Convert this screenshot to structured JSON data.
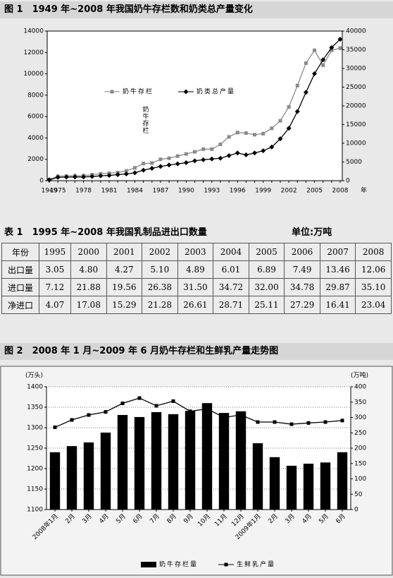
{
  "figure1_caption": "图 1　1949 年~2008 年我国奶牛存栏数和奶类总产量变化",
  "chart_data": [
    {
      "type": "line",
      "annotation": "奶牛存栏",
      "x_label": "年",
      "categories": [
        "1949",
        "1975",
        null,
        null,
        "1978",
        null,
        null,
        "1981",
        null,
        null,
        "1984",
        null,
        null,
        "1987",
        null,
        null,
        "1990",
        null,
        null,
        "1993",
        null,
        null,
        "1996",
        null,
        null,
        "1999",
        null,
        null,
        "2002",
        null,
        null,
        "2005",
        null,
        null,
        "2008"
      ],
      "series": [
        {
          "name": "奶牛存栏",
          "color": "#8a8a8a",
          "marker": "square",
          "values": [
            120,
            420,
            440,
            470,
            480,
            560,
            640,
            700,
            760,
            920,
            1200,
            1600,
            1650,
            2000,
            2100,
            2300,
            2500,
            2700,
            2950,
            2950,
            3400,
            4100,
            4500,
            4450,
            4300,
            4400,
            4900,
            5600,
            6900,
            8900,
            11000,
            12200,
            10800,
            12200,
            12400
          ]
        },
        {
          "name": "奶类总产量",
          "color": "#000000",
          "marker": "diamond",
          "axis": "y2",
          "values": [
            200,
            900,
            950,
            1000,
            1000,
            1100,
            1300,
            1400,
            1600,
            1800,
            2100,
            2800,
            3300,
            3800,
            4200,
            4500,
            4800,
            5300,
            5600,
            5800,
            6000,
            6700,
            7400,
            6900,
            7400,
            8000,
            9000,
            11200,
            14000,
            18500,
            23600,
            28600,
            32300,
            35600,
            37800
          ]
        }
      ],
      "ylim": [
        0,
        14000
      ],
      "yticks": [
        0,
        2000,
        4000,
        6000,
        8000,
        10000,
        12000,
        14000
      ],
      "y2lim": [
        0,
        40000
      ],
      "y2ticks": [
        0,
        5000,
        10000,
        15000,
        20000,
        25000,
        30000,
        35000,
        40000
      ]
    },
    {
      "type": "bar",
      "ylabel": "(万头)",
      "y2label": "(万吨)",
      "categories": [
        "2008年1月",
        "2月",
        "3月",
        "4月",
        "5月",
        "6月",
        "7月",
        "8月",
        "9月",
        "10月",
        "11月",
        "12月",
        "2009年1月",
        "2月",
        "3月",
        "4月",
        "5月",
        "6月"
      ],
      "series": [
        {
          "name": "奶牛存栏量",
          "color": "#000000",
          "values": [
            1240,
            1255,
            1264,
            1288,
            1331,
            1326,
            1338,
            1333,
            1341,
            1360,
            1336,
            1340,
            1262,
            1228,
            1207,
            1212,
            1215,
            1240
          ]
        },
        {
          "name": "生鲜乳产量",
          "color": "#000000",
          "type": "line",
          "marker": "square",
          "axis": "y2",
          "values": [
            268,
            292,
            308,
            318,
            346,
            363,
            338,
            353,
            320,
            328,
            300,
            308,
            285,
            285,
            278,
            282,
            285,
            290
          ]
        }
      ],
      "ylim": [
        1100,
        1400
      ],
      "yticks": [
        1100,
        1150,
        1200,
        1250,
        1300,
        1350,
        1400
      ],
      "y2lim": [
        0,
        400
      ],
      "y2ticks": [
        0,
        50,
        100,
        150,
        200,
        250,
        300,
        350,
        400
      ],
      "grid": true
    }
  ],
  "table": {
    "caption": "表 1　1995 年~2008 年我国乳制品进出口数量",
    "unit": "单位:万吨",
    "header": [
      "年份",
      "1995",
      "2000",
      "2001",
      "2002",
      "2003",
      "2004",
      "2005",
      "2006",
      "2007",
      "2008"
    ],
    "rows": [
      [
        "出口量",
        "3.05",
        "4.80",
        "4.27",
        "5.10",
        "4.89",
        "6.01",
        "6.89",
        "7.49",
        "13.46",
        "12.06"
      ],
      [
        "进口量",
        "7.12",
        "21.88",
        "19.56",
        "26.38",
        "31.50",
        "34.72",
        "32.00",
        "34.78",
        "29.87",
        "35.10"
      ],
      [
        "净进口",
        "4.07",
        "17.08",
        "15.29",
        "21.28",
        "26.61",
        "28.71",
        "25.11",
        "27.29",
        "16.41",
        "23.04"
      ]
    ]
  },
  "figure2_caption": "图 2　2008 年 1 月~2009 年 6 月奶牛存栏和生鲜乳产量走势图"
}
